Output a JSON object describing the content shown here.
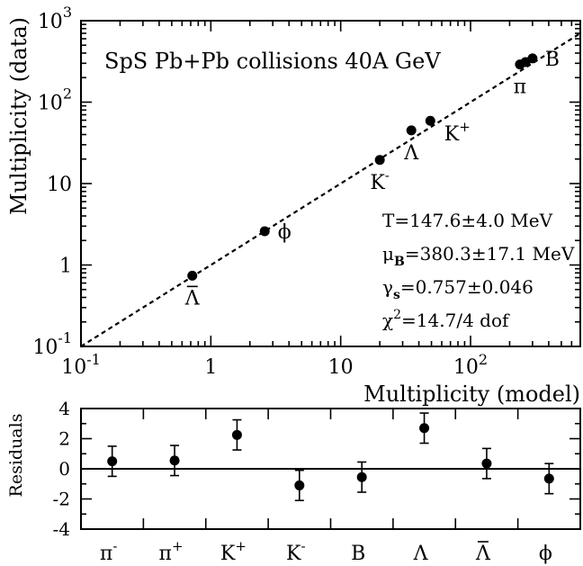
{
  "chart_data": [
    {
      "type": "scatter",
      "title": "SpS Pb+Pb collisions 40A GeV",
      "xlabel": "Multiplicity (model)",
      "ylabel": "Multiplicity (data)",
      "xscale": "log",
      "yscale": "log",
      "xlim": [
        0.1,
        700
      ],
      "ylim": [
        0.1,
        1000
      ],
      "x_ticks": [
        {
          "value": 0.1,
          "base": "10",
          "exp": "-1"
        },
        {
          "value": 1,
          "base": "1",
          "exp": ""
        },
        {
          "value": 10,
          "base": "10",
          "exp": ""
        },
        {
          "value": 100,
          "base": "10",
          "exp": "2"
        }
      ],
      "y_ticks": [
        {
          "value": 0.1,
          "base": "10",
          "exp": "-1"
        },
        {
          "value": 1,
          "base": "1",
          "exp": ""
        },
        {
          "value": 10,
          "base": "10",
          "exp": ""
        },
        {
          "value": 100,
          "base": "10",
          "exp": "2"
        },
        {
          "value": 1000,
          "base": "10",
          "exp": "3"
        }
      ],
      "reference_line": "y = x",
      "points": [
        {
          "name": "anti-Lambda",
          "x": 0.72,
          "y": 0.74,
          "label": "Λ",
          "overbar": true,
          "sup": "",
          "label_pos": "below"
        },
        {
          "name": "phi",
          "x": 2.6,
          "y": 2.6,
          "label": "ϕ",
          "overbar": false,
          "sup": "",
          "label_pos": "right"
        },
        {
          "name": "K-minus",
          "x": 20,
          "y": 19.5,
          "label": "K",
          "overbar": false,
          "sup": "-",
          "label_pos": "below"
        },
        {
          "name": "Lambda",
          "x": 35,
          "y": 45,
          "label": "Λ",
          "overbar": false,
          "sup": "",
          "label_pos": "below"
        },
        {
          "name": "K-plus",
          "x": 49,
          "y": 59,
          "label": "K",
          "overbar": false,
          "sup": "+",
          "label_pos": "below-right"
        },
        {
          "name": "pi-minus",
          "x": 240,
          "y": 290,
          "label": "π",
          "overbar": false,
          "sup": "",
          "label_pos": "below"
        },
        {
          "name": "pi-plus",
          "x": 265,
          "y": 310,
          "label": "",
          "overbar": false,
          "sup": "",
          "label_pos": "none"
        },
        {
          "name": "B",
          "x": 300,
          "y": 345,
          "label": "B",
          "overbar": false,
          "sup": "",
          "label_pos": "right"
        }
      ],
      "fit_results": [
        {
          "pre": "T=147.6±4.0 MeV",
          "sub": "",
          "sup": "",
          "post": ""
        },
        {
          "pre": "μ",
          "sub": "B",
          "sup": "",
          "post": "=380.3±17.1 MeV"
        },
        {
          "pre": "γ",
          "sub": "s",
          "sup": "",
          "post": "=0.757±0.046"
        },
        {
          "pre": "χ",
          "sub": "",
          "sup": "2",
          "post": "=14.7/4 dof"
        }
      ]
    },
    {
      "type": "scatter",
      "ylabel": "Residuals",
      "ylim": [
        -4,
        4
      ],
      "y_ticks": [
        -4,
        -2,
        0,
        2,
        4
      ],
      "categories": [
        {
          "base": "π",
          "sup": "-",
          "overbar": false
        },
        {
          "base": "π",
          "sup": "+",
          "overbar": false
        },
        {
          "base": "K",
          "sup": "+",
          "overbar": false
        },
        {
          "base": "K",
          "sup": "-",
          "overbar": false
        },
        {
          "base": "B",
          "sup": "",
          "overbar": false
        },
        {
          "base": "Λ",
          "sup": "",
          "overbar": false
        },
        {
          "base": "Λ",
          "sup": "",
          "overbar": true
        },
        {
          "base": "ϕ",
          "sup": "",
          "overbar": false
        }
      ],
      "values": [
        0.5,
        0.55,
        2.25,
        -1.1,
        -0.55,
        2.7,
        0.35,
        -0.65
      ],
      "errors": [
        1.0,
        1.0,
        1.0,
        1.0,
        1.0,
        1.0,
        1.0,
        1.0
      ]
    }
  ]
}
